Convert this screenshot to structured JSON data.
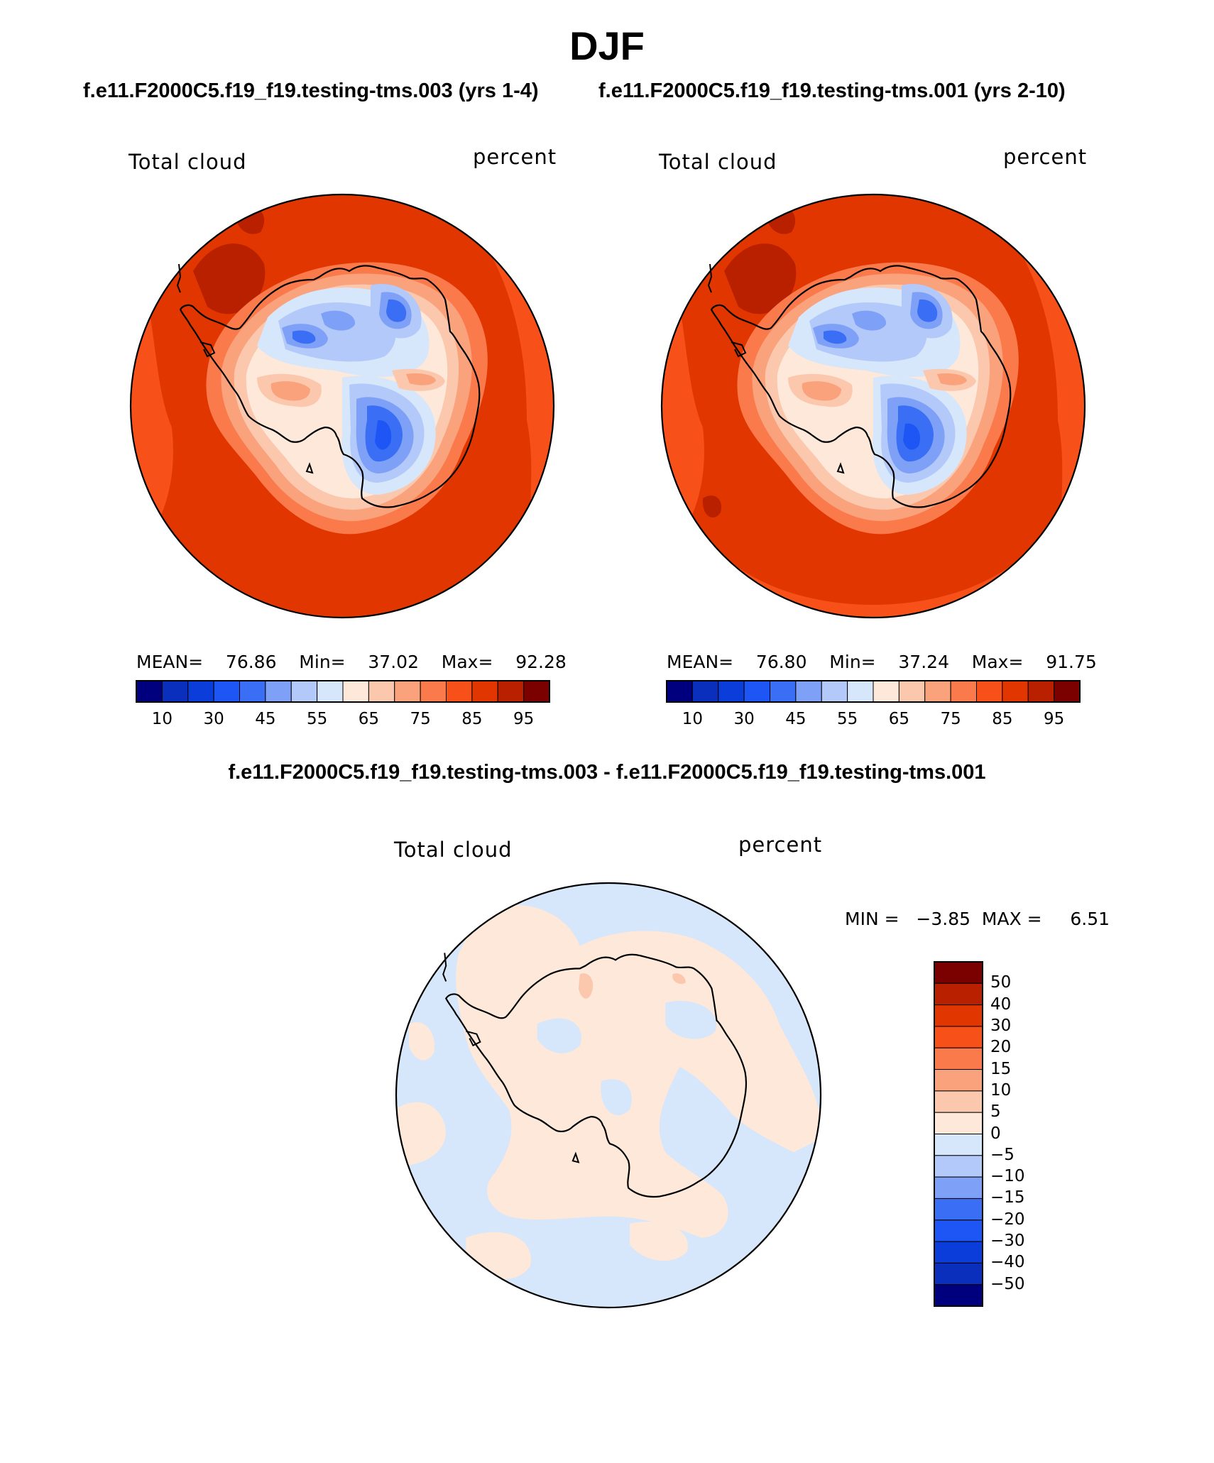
{
  "title": "DJF",
  "panels": [
    {
      "case": "f.e11.F2000C5.f19_f19.testing-tms.003 (yrs 1-4)",
      "variable": "Total cloud",
      "units": "percent",
      "stats": {
        "mean_label": "MEAN=",
        "mean": "76.86",
        "min_label": "Min=",
        "min": "37.02",
        "max_label": "Max=",
        "max": "92.28"
      }
    },
    {
      "case": "f.e11.F2000C5.f19_f19.testing-tms.001 (yrs 2-10)",
      "variable": "Total cloud",
      "units": "percent",
      "stats": {
        "mean_label": "MEAN=",
        "mean": "76.80",
        "min_label": "Min=",
        "min": "37.24",
        "max_label": "Max=",
        "max": "91.75"
      }
    }
  ],
  "abs_colorbar": {
    "colors": [
      "#00007f",
      "#0a2fbd",
      "#0b3ddb",
      "#1e55f5",
      "#3a6ff5",
      "#7ea0f7",
      "#b3c9f9",
      "#d6e6fb",
      "#fde8da",
      "#fbc8ae",
      "#f9a27c",
      "#fa7a4c",
      "#f85019",
      "#e13600",
      "#b82000",
      "#7b0000"
    ],
    "labels": [
      "10",
      "30",
      "45",
      "55",
      "65",
      "75",
      "85",
      "95"
    ]
  },
  "diff": {
    "title": "f.e11.F2000C5.f19_f19.testing-tms.003 - f.e11.F2000C5.f19_f19.testing-tms.001",
    "variable": "Total cloud",
    "units": "percent",
    "stats": {
      "min_label": "MIN =",
      "min": "−3.85",
      "max_label": "MAX =",
      "max": "6.51"
    },
    "colorbar": {
      "colors_top_to_bottom": [
        "#7b0000",
        "#b82000",
        "#e13600",
        "#f85019",
        "#fa7a4c",
        "#f9a27c",
        "#fbc8ae",
        "#fde8da",
        "#d6e6fb",
        "#b3c9f9",
        "#7ea0f7",
        "#3a6ff5",
        "#1e55f5",
        "#0b3ddb",
        "#0a2fbd",
        "#00007f"
      ],
      "labels": [
        "50",
        "40",
        "30",
        "20",
        "15",
        "10",
        "5",
        "0",
        "−5",
        "−10",
        "−15",
        "−20",
        "−30",
        "−40",
        "−50"
      ]
    }
  },
  "colors": {
    "ocean_high": "#e13600",
    "ocean_mid": "#f85019",
    "ocean_dark": "#b82000",
    "diff_pos": "#fde8da",
    "diff_neg": "#d6e6fb"
  }
}
